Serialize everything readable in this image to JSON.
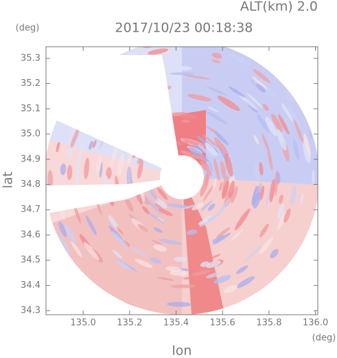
{
  "chart_data": {
    "type": "radar-field",
    "title": "2017/10/23 00:18:38",
    "subtitle": "ALT(km) 2.0",
    "x_label": "lon",
    "y_label": "lat",
    "x_unit": "(deg)",
    "y_unit": "(deg)",
    "xlim": [
      134.84,
      136.01
    ],
    "xticks": [
      {
        "value": 135,
        "label": "135.0"
      },
      135.2,
      135.4,
      135.6,
      135.8,
      {
        "value": 136,
        "label": "136.0"
      }
    ],
    "ylim": [
      34.284,
      35.346
    ],
    "yticks": [
      34.3,
      34.4,
      34.5,
      34.6,
      34.7,
      34.8,
      34.9,
      {
        "value": 35,
        "label": "35.0"
      },
      35.1,
      35.2,
      35.3
    ]
  }
}
